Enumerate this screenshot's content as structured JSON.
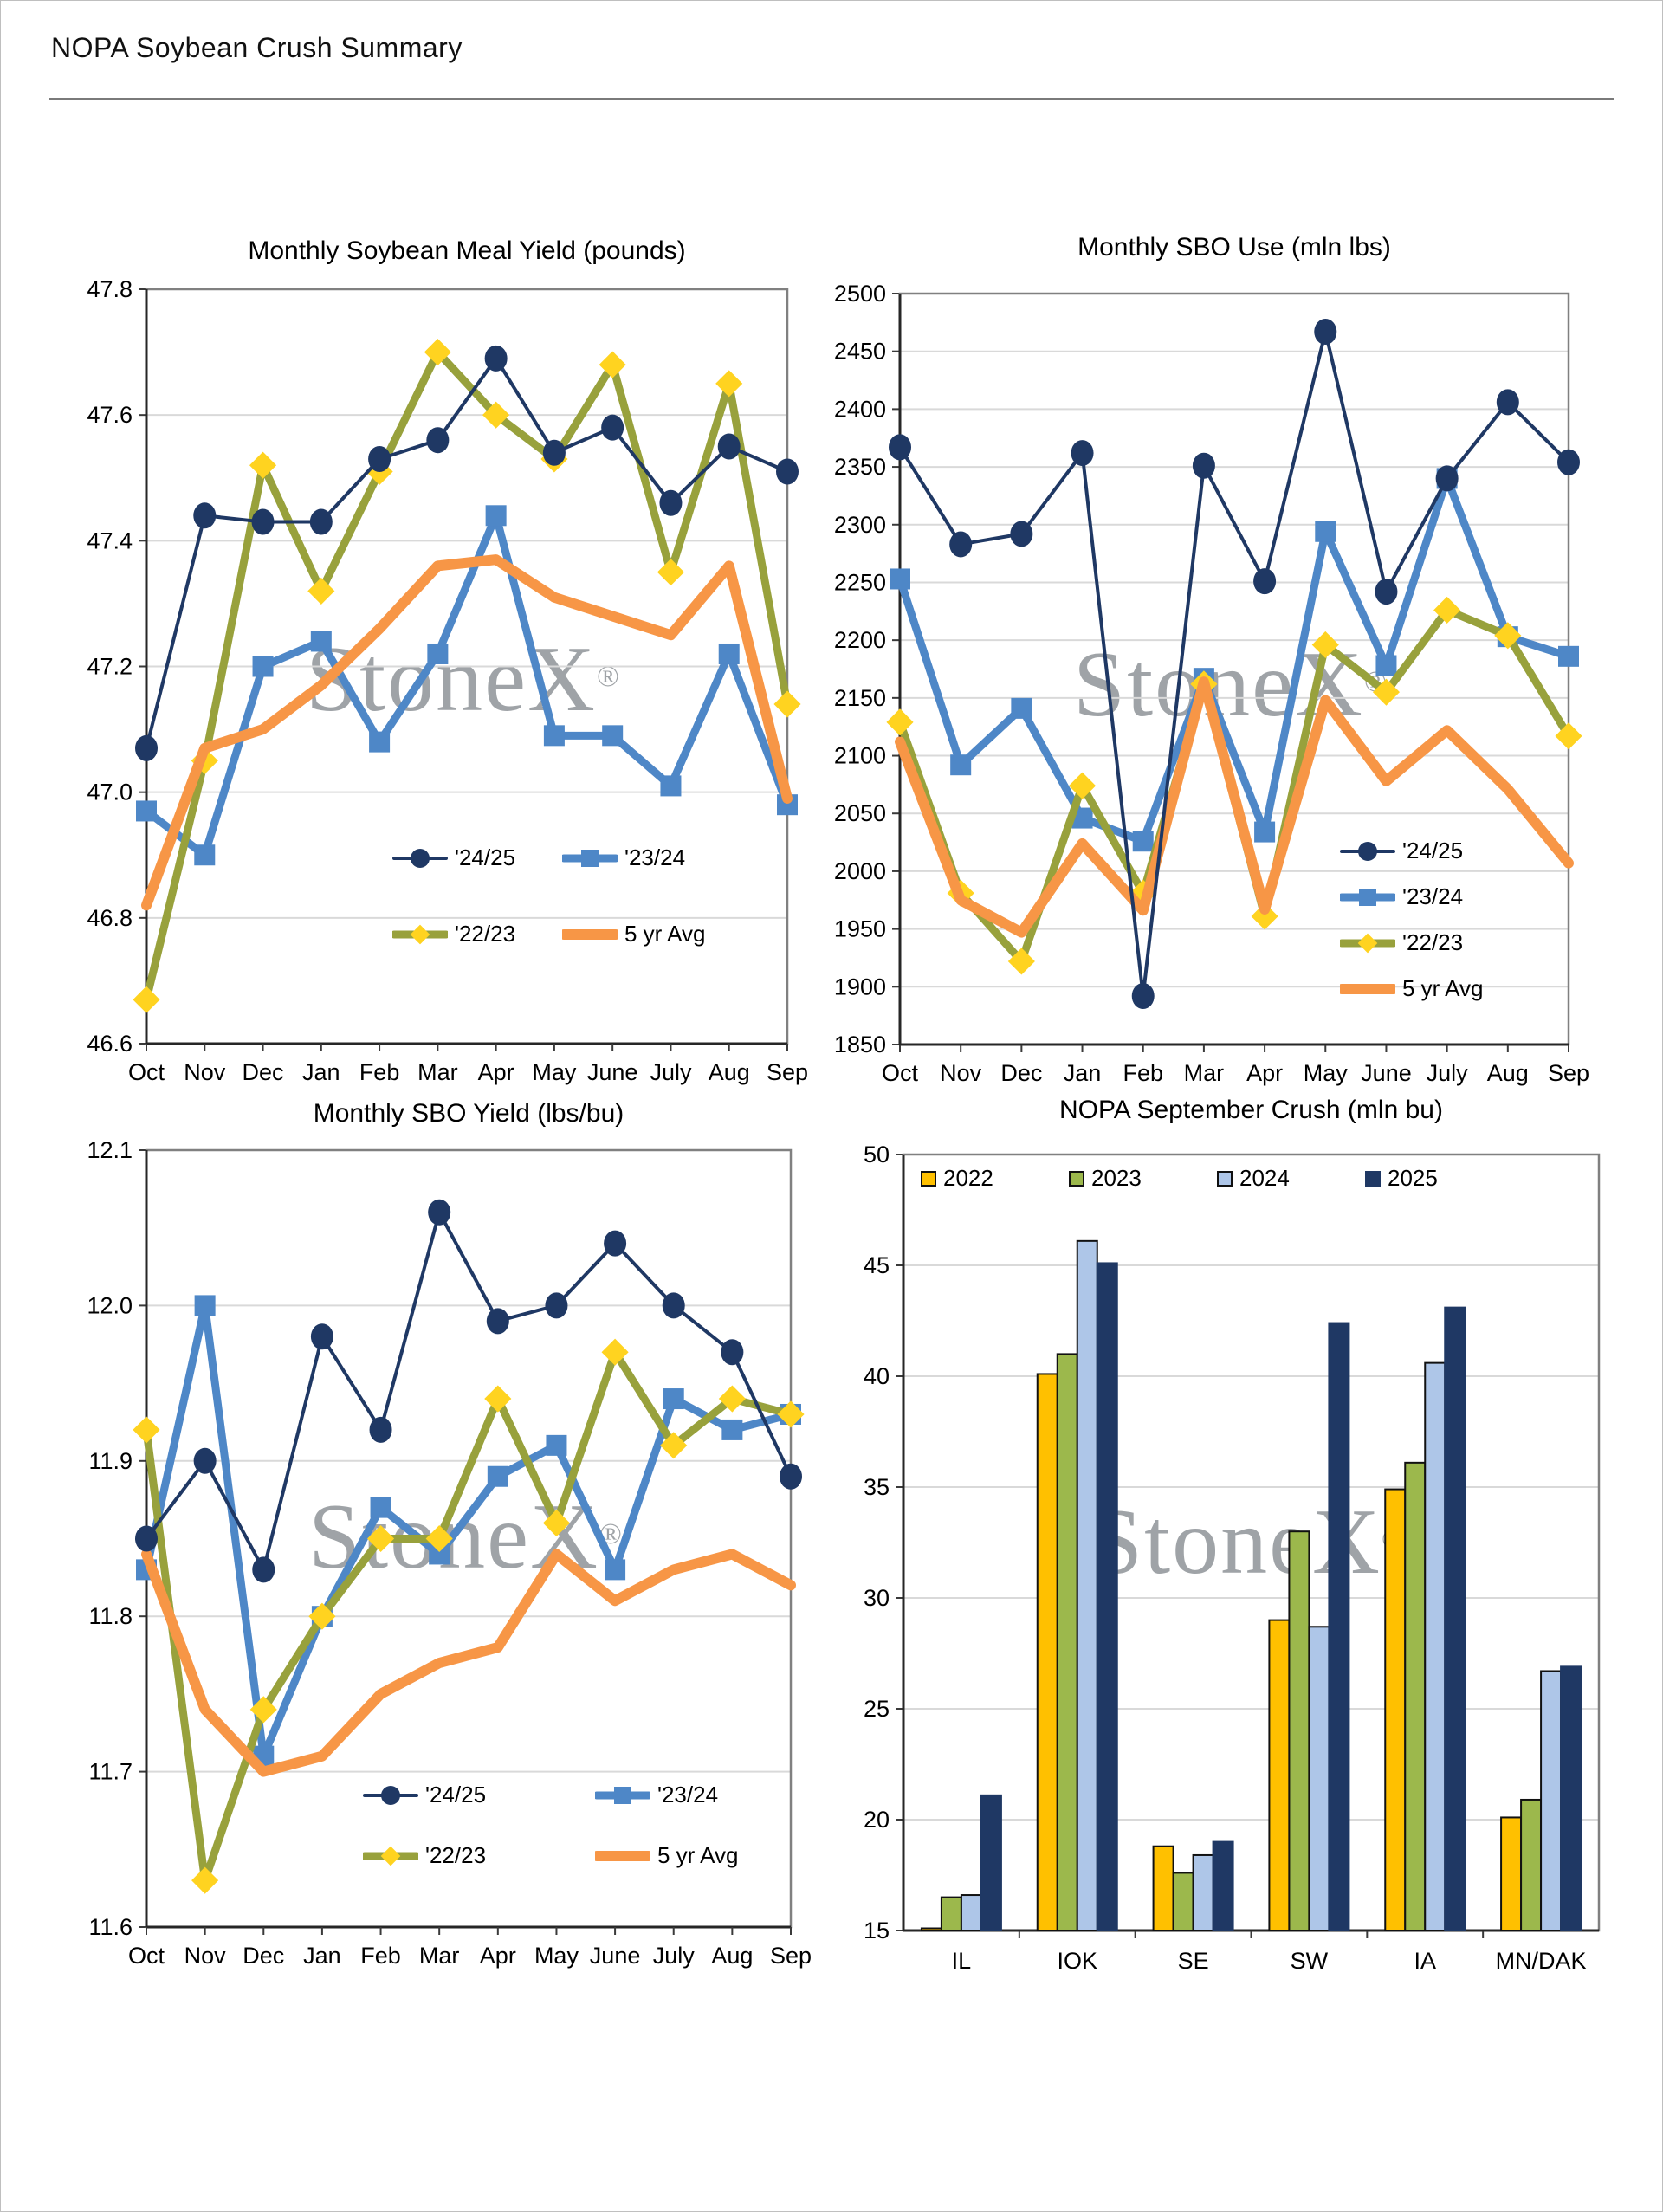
{
  "page": {
    "title": "NOPA Soybean Crush Summary"
  },
  "watermark": {
    "text": "StoneX",
    "reg": "®"
  },
  "colors": {
    "navy": "#1F3864",
    "blue": "#4E87C7",
    "olive": "#98A13C",
    "yellow": "#FFD320",
    "orange": "#F79646",
    "bar2022": "#FFC000",
    "bar2023": "#9CB84C",
    "bar2024": "#AEC6E8",
    "bar2025": "#1F3864",
    "grid": "#D9D9D9",
    "box": "#808080",
    "axis": "#3a3a3a",
    "text": "#000000"
  },
  "months": [
    "Oct",
    "Nov",
    "Dec",
    "Jan",
    "Feb",
    "Mar",
    "Apr",
    "May",
    "June",
    "July",
    "Aug",
    "Sep"
  ],
  "chart_data": [
    {
      "id": "meal-yield",
      "type": "line",
      "title": "Monthly Soybean Meal Yield (pounds)",
      "ylim": [
        46.6,
        47.8
      ],
      "ytick": 0.2,
      "ydecimals": 1,
      "grid": true,
      "legend_position": "inside-bottom-center-2x2",
      "categories": [
        "Oct",
        "Nov",
        "Dec",
        "Jan",
        "Feb",
        "Mar",
        "Apr",
        "May",
        "June",
        "July",
        "Aug",
        "Sep"
      ],
      "series": [
        {
          "name": "'24/25",
          "color": "navy",
          "marker": "circle",
          "values": [
            47.07,
            47.44,
            47.43,
            47.43,
            47.53,
            47.56,
            47.69,
            47.54,
            47.58,
            47.46,
            47.55,
            47.51
          ]
        },
        {
          "name": "'23/24",
          "color": "blue",
          "marker": "square",
          "values": [
            46.97,
            46.9,
            47.2,
            47.24,
            47.08,
            47.22,
            47.44,
            47.09,
            47.09,
            47.01,
            47.22,
            46.98
          ]
        },
        {
          "name": "'22/23",
          "color": "olive",
          "marker": "diamond",
          "values": [
            46.67,
            47.05,
            47.52,
            47.32,
            47.51,
            47.7,
            47.6,
            47.53,
            47.68,
            47.35,
            47.65,
            47.14
          ]
        },
        {
          "name": "5 yr Avg",
          "color": "orange",
          "marker": "none",
          "values": [
            46.82,
            47.07,
            47.1,
            47.17,
            47.26,
            47.36,
            47.37,
            47.31,
            47.28,
            47.25,
            47.36,
            46.99
          ]
        }
      ]
    },
    {
      "id": "sbo-use",
      "type": "line",
      "title": "Monthly SBO Use (mln lbs)",
      "ylim": [
        1850,
        2500
      ],
      "ytick": 50,
      "ydecimals": 0,
      "grid": true,
      "legend_position": "inside-right-column",
      "categories": [
        "Oct",
        "Nov",
        "Dec",
        "Jan",
        "Feb",
        "Mar",
        "Apr",
        "May",
        "June",
        "July",
        "Aug",
        "Sep"
      ],
      "series": [
        {
          "name": "'24/25",
          "color": "navy",
          "marker": "circle",
          "values": [
            2367,
            2283,
            2292,
            2362,
            1892,
            2351,
            2251,
            2467,
            2242,
            2340,
            2406,
            2354
          ]
        },
        {
          "name": "'23/24",
          "color": "blue",
          "marker": "square",
          "values": [
            2253,
            2092,
            2141,
            2046,
            2026,
            2167,
            2034,
            2294,
            2178,
            2340,
            2203,
            2186
          ]
        },
        {
          "name": "'22/23",
          "color": "olive",
          "marker": "diamond",
          "values": [
            2129,
            1981,
            1922,
            2074,
            1981,
            2162,
            1961,
            2196,
            2155,
            2226,
            2204,
            2117
          ]
        },
        {
          "name": "5 yr Avg",
          "color": "orange",
          "marker": "none",
          "values": [
            2112,
            1975,
            1947,
            2024,
            1966,
            2164,
            1967,
            2148,
            2078,
            2122,
            2071,
            2007
          ]
        }
      ]
    },
    {
      "id": "sbo-yield",
      "type": "line",
      "title": "Monthly SBO Yield (lbs/bu)",
      "ylim": [
        11.6,
        12.1
      ],
      "ytick": 0.1,
      "ydecimals": 1,
      "grid": true,
      "legend_position": "inside-bottom-center-2x2",
      "categories": [
        "Oct",
        "Nov",
        "Dec",
        "Jan",
        "Feb",
        "Mar",
        "Apr",
        "May",
        "June",
        "July",
        "Aug",
        "Sep"
      ],
      "series": [
        {
          "name": "'24/25",
          "color": "navy",
          "marker": "circle",
          "values": [
            11.85,
            11.9,
            11.83,
            11.98,
            11.92,
            12.06,
            11.99,
            12.0,
            12.04,
            12.0,
            11.97,
            11.89
          ]
        },
        {
          "name": "'23/24",
          "color": "blue",
          "marker": "square",
          "values": [
            11.83,
            12.0,
            11.71,
            11.8,
            11.87,
            11.84,
            11.89,
            11.91,
            11.83,
            11.94,
            11.92,
            11.93
          ]
        },
        {
          "name": "'22/23",
          "color": "olive",
          "marker": "diamond",
          "values": [
            11.92,
            11.63,
            11.74,
            11.8,
            11.85,
            11.85,
            11.94,
            11.86,
            11.97,
            11.91,
            11.94,
            11.93
          ]
        },
        {
          "name": "5 yr Avg",
          "color": "orange",
          "marker": "none",
          "values": [
            11.84,
            11.74,
            11.7,
            11.71,
            11.75,
            11.77,
            11.78,
            11.84,
            11.81,
            11.83,
            11.84,
            11.82
          ]
        }
      ]
    },
    {
      "id": "september-crush",
      "type": "bar",
      "title": "NOPA September Crush (mln bu)",
      "ylim": [
        15,
        50
      ],
      "ytick": 5,
      "ydecimals": 0,
      "grid": true,
      "legend_position": "inside-top-row",
      "categories": [
        "IL",
        "IOK",
        "SE",
        "SW",
        "IA",
        "MN/DAK"
      ],
      "series": [
        {
          "name": "2022",
          "color": "bar2022",
          "values": [
            15.0,
            40.1,
            18.8,
            29.0,
            34.9,
            20.1
          ]
        },
        {
          "name": "2023",
          "color": "bar2023",
          "values": [
            16.5,
            41.0,
            17.6,
            33.0,
            36.1,
            20.9
          ]
        },
        {
          "name": "2024",
          "color": "bar2024",
          "values": [
            16.6,
            46.1,
            18.4,
            28.7,
            40.6,
            26.7
          ]
        },
        {
          "name": "2025",
          "color": "bar2025",
          "values": [
            21.1,
            45.1,
            19.0,
            42.4,
            43.1,
            26.9
          ]
        }
      ]
    }
  ]
}
